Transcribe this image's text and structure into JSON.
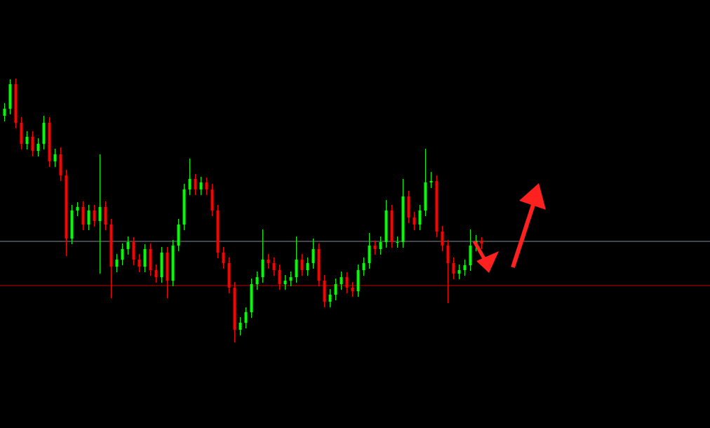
{
  "chart_data": {
    "type": "candlestick",
    "up_color": "#00ff00",
    "down_color": "#ff0000",
    "ylim": [
      0,
      610
    ],
    "hlines": [
      {
        "value": 266,
        "color": "#7f8c99"
      },
      {
        "value": 203,
        "color": "#c00000"
      }
    ],
    "open": [
      445,
      455,
      490,
      435,
      405,
      415,
      395,
      405,
      435,
      380,
      390,
      360,
      270,
      310,
      315,
      290,
      310,
      295,
      315,
      290,
      230,
      240,
      255,
      265,
      240,
      230,
      255,
      225,
      215,
      250,
      210,
      260,
      290,
      340,
      355,
      340,
      350,
      340,
      310,
      250,
      235,
      200,
      140,
      150,
      165,
      205,
      215,
      240,
      235,
      225,
      205,
      210,
      215,
      240,
      225,
      235,
      255,
      210,
      180,
      190,
      205,
      215,
      200,
      195,
      225,
      235,
      260,
      255,
      265,
      310,
      265,
      265,
      330,
      300,
      290,
      310,
      350,
      352,
      280,
      260,
      235,
      220,
      225,
      232,
      260,
      267
    ],
    "high": [
      463,
      497,
      498,
      443,
      423,
      423,
      413,
      445,
      443,
      398,
      400,
      368,
      318,
      322,
      323,
      318,
      318,
      390,
      323,
      298,
      248,
      263,
      273,
      272,
      248,
      262,
      263,
      233,
      258,
      258,
      268,
      298,
      348,
      384,
      362,
      358,
      357,
      348,
      318,
      258,
      243,
      208,
      158,
      172,
      213,
      223,
      283,
      248,
      243,
      233,
      218,
      223,
      273,
      248,
      243,
      270,
      263,
      218,
      198,
      213,
      223,
      222,
      208,
      233,
      243,
      278,
      267,
      273,
      325,
      318,
      273,
      355,
      338,
      308,
      318,
      398,
      365,
      360,
      288,
      268,
      243,
      233,
      240,
      283,
      275,
      272
    ],
    "low": [
      437,
      447,
      427,
      397,
      397,
      387,
      387,
      397,
      372,
      372,
      352,
      245,
      262,
      302,
      282,
      282,
      287,
      220,
      282,
      185,
      222,
      232,
      247,
      232,
      222,
      222,
      217,
      207,
      207,
      185,
      202,
      252,
      282,
      332,
      332,
      332,
      332,
      302,
      242,
      227,
      192,
      122,
      132,
      142,
      157,
      197,
      207,
      227,
      217,
      197,
      197,
      202,
      207,
      217,
      217,
      227,
      202,
      172,
      172,
      182,
      197,
      192,
      187,
      187,
      217,
      227,
      247,
      247,
      257,
      257,
      257,
      257,
      292,
      282,
      282,
      302,
      342,
      272,
      252,
      178,
      212,
      212,
      217,
      224,
      252,
      255
    ],
    "close": [
      455,
      490,
      435,
      405,
      415,
      395,
      405,
      435,
      380,
      390,
      360,
      270,
      310,
      315,
      290,
      310,
      295,
      315,
      290,
      230,
      240,
      255,
      265,
      240,
      230,
      255,
      225,
      215,
      250,
      210,
      260,
      290,
      340,
      355,
      340,
      350,
      340,
      310,
      250,
      235,
      200,
      140,
      150,
      165,
      205,
      215,
      240,
      235,
      225,
      205,
      210,
      215,
      240,
      225,
      235,
      255,
      210,
      180,
      190,
      205,
      215,
      200,
      195,
      225,
      235,
      260,
      255,
      265,
      310,
      265,
      265,
      330,
      300,
      290,
      310,
      350,
      352,
      280,
      260,
      235,
      220,
      225,
      232,
      260,
      267,
      263
    ]
  }
}
